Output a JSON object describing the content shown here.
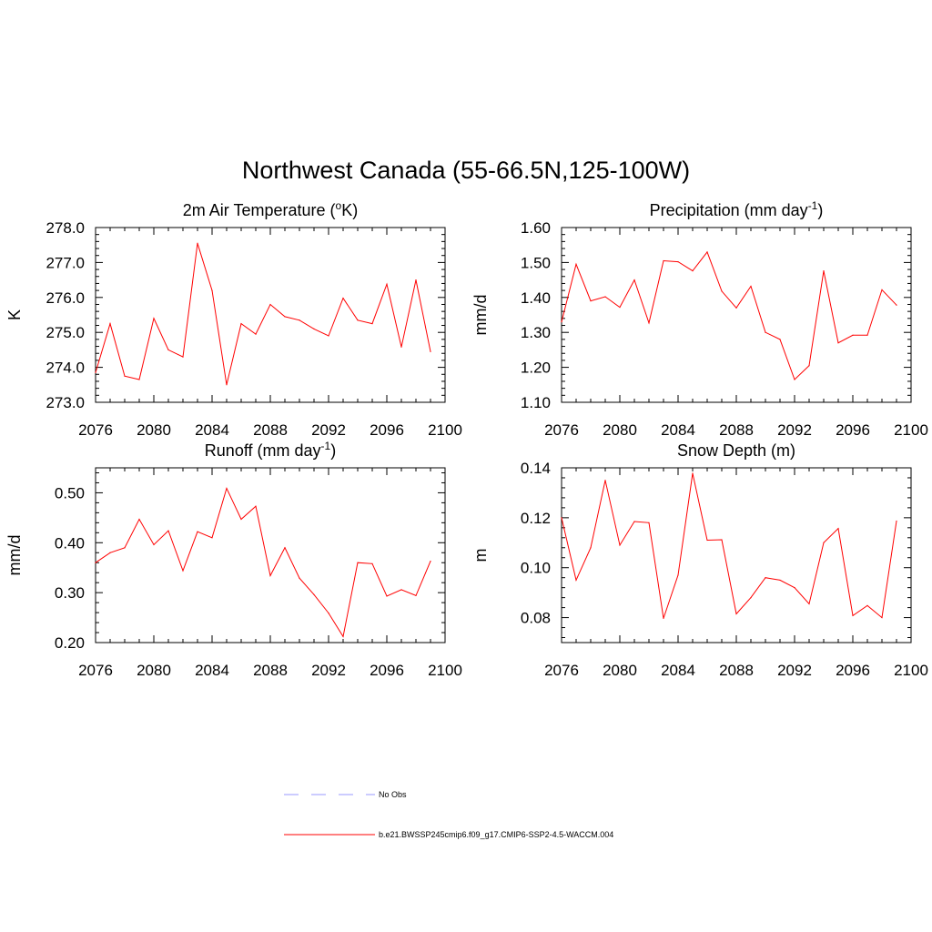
{
  "figure": {
    "title": "Northwest Canada (55-66.5N,125-100W)"
  },
  "legend": [
    {
      "label": "No Obs",
      "color": "#9999ff",
      "dash": true
    },
    {
      "label": "b.e21.BWSSP245cmip6.f09_g17.CMIP6-SSP2-4.5-WACCM.004",
      "color": "#ff0000",
      "dash": false
    }
  ],
  "chart_data": [
    {
      "type": "line",
      "title": "2m Air Temperature (oK)",
      "title_parts": {
        "pre": "2m Air Temperature (",
        "sup": "o",
        "post": "K)"
      },
      "ylabel": "K",
      "xlim": [
        2076,
        2100
      ],
      "ylim": [
        273.0,
        278.0
      ],
      "xticks": [
        2076,
        2080,
        2084,
        2088,
        2092,
        2096,
        2100
      ],
      "yticks": [
        "273.0",
        "274.0",
        "275.0",
        "276.0",
        "277.0",
        "278.0"
      ],
      "x": [
        2076,
        2077,
        2078,
        2079,
        2080,
        2081,
        2082,
        2083,
        2084,
        2085,
        2086,
        2087,
        2088,
        2089,
        2090,
        2091,
        2092,
        2093,
        2094,
        2095,
        2096,
        2097,
        2098,
        2099
      ],
      "series": [
        {
          "values": [
            273.85,
            275.25,
            273.75,
            273.65,
            275.4,
            274.5,
            274.3,
            277.55,
            276.2,
            273.5,
            275.25,
            274.95,
            275.8,
            275.45,
            275.35,
            275.1,
            274.9,
            275.98,
            275.35,
            275.25,
            276.38,
            274.58,
            276.5,
            274.45
          ],
          "color": "#ff0000"
        }
      ]
    },
    {
      "type": "line",
      "title": "Precipitation (mm day-1)",
      "title_parts": {
        "pre": "Precipitation (mm day",
        "sup": "-1",
        "post": ")"
      },
      "ylabel": "mm/d",
      "xlim": [
        2076,
        2100
      ],
      "ylim": [
        1.1,
        1.6
      ],
      "xticks": [
        2076,
        2080,
        2084,
        2088,
        2092,
        2096,
        2100
      ],
      "yticks": [
        "1.10",
        "1.20",
        "1.30",
        "1.40",
        "1.50",
        "1.60"
      ],
      "x": [
        2076,
        2077,
        2078,
        2079,
        2080,
        2081,
        2082,
        2083,
        2084,
        2085,
        2086,
        2087,
        2088,
        2089,
        2090,
        2091,
        2092,
        2093,
        2094,
        2095,
        2096,
        2097,
        2098,
        2099
      ],
      "series": [
        {
          "values": [
            1.33,
            1.495,
            1.39,
            1.402,
            1.372,
            1.45,
            1.327,
            1.505,
            1.502,
            1.476,
            1.53,
            1.418,
            1.37,
            1.432,
            1.3,
            1.28,
            1.165,
            1.205,
            1.476,
            1.27,
            1.292,
            1.292,
            1.422,
            1.378
          ],
          "color": "#ff0000"
        }
      ]
    },
    {
      "type": "line",
      "title": "Runoff (mm day-1)",
      "title_parts": {
        "pre": "Runoff (mm day",
        "sup": "-1",
        "post": ")"
      },
      "ylabel": "mm/d",
      "xlim": [
        2076,
        2100
      ],
      "ylim": [
        0.2,
        0.55
      ],
      "xticks": [
        2076,
        2080,
        2084,
        2088,
        2092,
        2096,
        2100
      ],
      "yticks": [
        "0.20",
        "0.30",
        "0.40",
        "0.50"
      ],
      "x": [
        2076,
        2077,
        2078,
        2079,
        2080,
        2081,
        2082,
        2083,
        2084,
        2085,
        2086,
        2087,
        2088,
        2089,
        2090,
        2091,
        2092,
        2093,
        2094,
        2095,
        2096,
        2097,
        2098,
        2099
      ],
      "series": [
        {
          "values": [
            0.36,
            0.38,
            0.39,
            0.447,
            0.396,
            0.424,
            0.344,
            0.422,
            0.41,
            0.509,
            0.447,
            0.473,
            0.334,
            0.39,
            0.329,
            0.296,
            0.259,
            0.212,
            0.36,
            0.358,
            0.293,
            0.306,
            0.294,
            0.363
          ],
          "color": "#ff0000"
        }
      ]
    },
    {
      "type": "line",
      "title": "Snow Depth (m)",
      "title_parts": {
        "pre": "Snow Depth (m)",
        "sup": "",
        "post": ""
      },
      "ylabel": "m",
      "xlim": [
        2076,
        2100
      ],
      "ylim": [
        0.07,
        0.14
      ],
      "xticks": [
        2076,
        2080,
        2084,
        2088,
        2092,
        2096,
        2100
      ],
      "yticks": [
        "0.08",
        "0.10",
        "0.12",
        "0.14"
      ],
      "x": [
        2076,
        2077,
        2078,
        2079,
        2080,
        2081,
        2082,
        2083,
        2084,
        2085,
        2086,
        2087,
        2088,
        2089,
        2090,
        2091,
        2092,
        2093,
        2094,
        2095,
        2096,
        2097,
        2098,
        2099
      ],
      "series": [
        {
          "values": [
            0.12,
            0.095,
            0.108,
            0.135,
            0.109,
            0.1185,
            0.118,
            0.0797,
            0.097,
            0.1378,
            0.111,
            0.1112,
            0.0815,
            0.088,
            0.096,
            0.095,
            0.092,
            0.0855,
            0.11,
            0.1157,
            0.0808,
            0.0848,
            0.08,
            0.1187
          ],
          "color": "#ff0000"
        }
      ]
    }
  ]
}
